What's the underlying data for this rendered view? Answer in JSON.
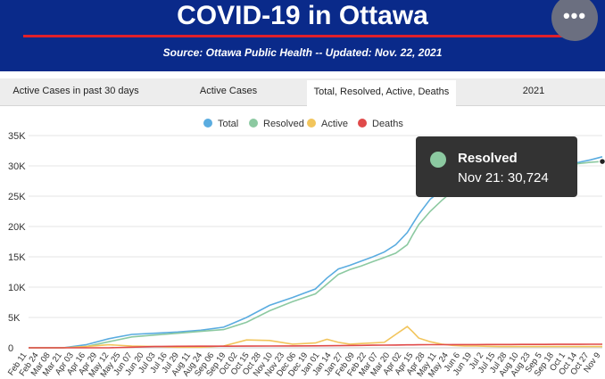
{
  "header": {
    "title": "COVID-19 in Ottawa",
    "source": "Source:  Ottawa Public Health -- Updated:  Nov. 22, 2021",
    "menu_icon": "more-horizontal-icon",
    "bg_color": "#0a2a8a",
    "accent_color": "#e0202a"
  },
  "tabs": [
    {
      "label": "Active Cases in past 30 days",
      "active": false
    },
    {
      "label": "Active Cases",
      "active": false
    },
    {
      "label": "Total, Resolved, Active, Deaths",
      "active": true
    },
    {
      "label": "2021",
      "active": false
    }
  ],
  "tooltip": {
    "series": "Resolved",
    "text": "Nov 21: 30,724",
    "color": "#8cc9a1"
  },
  "chart_data": {
    "type": "line",
    "legend_position": "top-center",
    "ylim": [
      0,
      35000
    ],
    "yticks": [
      0,
      5000,
      10000,
      15000,
      20000,
      25000,
      30000,
      35000
    ],
    "ytick_labels": [
      "0",
      "5K",
      "10K",
      "15K",
      "20K",
      "25K",
      "30K",
      "35K"
    ],
    "grid": true,
    "xticks": [
      "Feb 11",
      "Feb 24",
      "Mar 08",
      "Mar 21",
      "Apr 03",
      "Apr 16",
      "Apr 29",
      "May 12",
      "May 25",
      "Jun 07",
      "Jun 20",
      "Jul 03",
      "Jul 16",
      "Jul 29",
      "Aug 11",
      "Aug 24",
      "Sep 06",
      "Sep 19",
      "Oct 02",
      "Oct 15",
      "Oct 28",
      "Nov 10",
      "Nov 23",
      "Dec 06",
      "Dec 19",
      "Jan 01",
      "Jan 14",
      "Jan 27",
      "Feb 09",
      "Feb 22",
      "Mar 07",
      "Mar 20",
      "Apr 02",
      "Apr 15",
      "Apr 28",
      "May 11",
      "May 24",
      "Jun 6",
      "Jun 19",
      "Jul 2",
      "Jul 15",
      "Jul 28",
      "Aug 10",
      "Aug 23",
      "Sep 5",
      "Sep 18",
      "Oct 1",
      "Oct 14",
      "Oct 27",
      "Nov 9"
    ],
    "x": [
      0,
      6,
      10,
      14,
      18,
      22,
      26,
      30,
      34,
      38,
      42,
      46,
      50,
      52,
      54,
      56,
      58,
      60,
      62,
      64,
      66,
      67,
      68,
      70,
      72,
      74,
      76,
      78,
      80,
      82,
      84,
      86,
      88,
      90,
      92,
      94,
      96,
      98,
      100
    ],
    "series": [
      {
        "name": "Total",
        "color": "#5aace0",
        "values": [
          0,
          0,
          500,
          1500,
          2200,
          2400,
          2600,
          2900,
          3400,
          5000,
          7000,
          8300,
          9700,
          11500,
          13000,
          13600,
          14300,
          15000,
          15800,
          17000,
          19000,
          20500,
          22000,
          24500,
          26000,
          27000,
          27600,
          27900,
          28200,
          28500,
          28800,
          29100,
          29300,
          29600,
          29900,
          30200,
          30600,
          31000,
          31500
        ]
      },
      {
        "name": "Resolved",
        "color": "#8cc9a1",
        "values": [
          0,
          0,
          200,
          1000,
          1800,
          2100,
          2400,
          2700,
          3000,
          4200,
          6100,
          7600,
          8900,
          10500,
          12100,
          12900,
          13500,
          14200,
          14900,
          15600,
          17000,
          18700,
          20300,
          22500,
          24300,
          25900,
          27000,
          27500,
          27900,
          28300,
          28700,
          29000,
          29200,
          29500,
          29800,
          30100,
          30400,
          30600,
          30724
        ]
      },
      {
        "name": "Active",
        "color": "#f2c55c",
        "values": [
          0,
          0,
          200,
          500,
          300,
          200,
          100,
          100,
          300,
          1300,
          1200,
          600,
          800,
          1400,
          900,
          600,
          700,
          800,
          900,
          2200,
          3500,
          2600,
          1600,
          1000,
          600,
          400,
          300,
          300,
          250,
          200,
          200,
          200,
          200,
          200,
          200,
          200,
          200,
          200,
          200
        ]
      },
      {
        "name": "Deaths",
        "color": "#e04a4a",
        "values": [
          0,
          0,
          0,
          0,
          100,
          200,
          250,
          260,
          270,
          280,
          300,
          310,
          320,
          340,
          360,
          380,
          400,
          420,
          440,
          460,
          480,
          490,
          500,
          510,
          520,
          530,
          530,
          535,
          540,
          545,
          550,
          555,
          560,
          565,
          570,
          575,
          580,
          585,
          590
        ]
      }
    ]
  }
}
